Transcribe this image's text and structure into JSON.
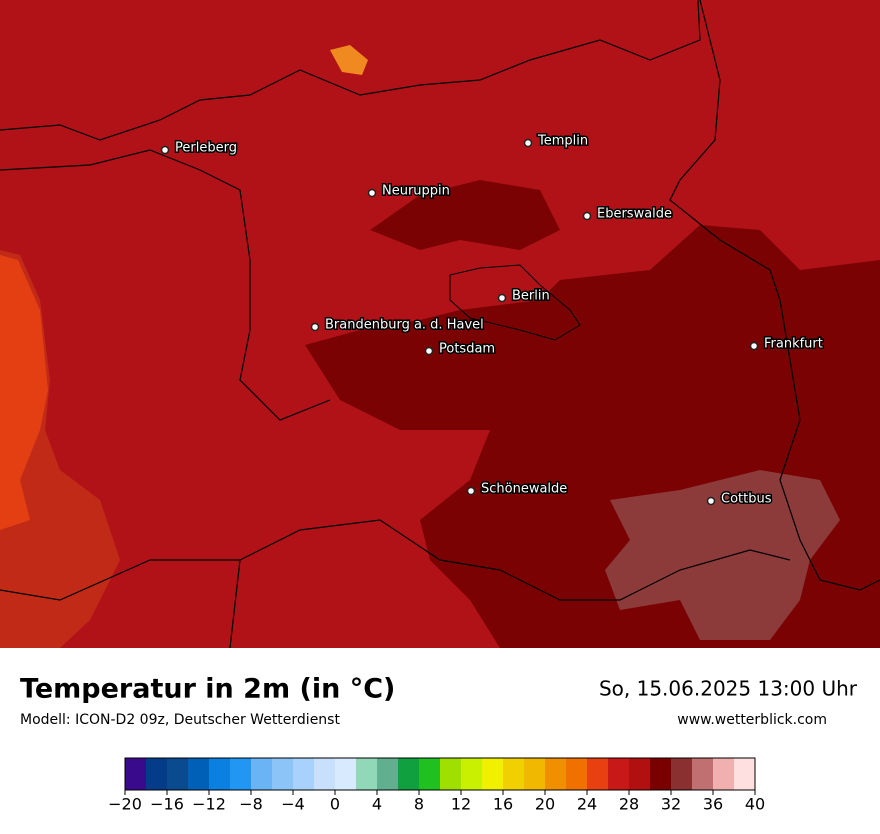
{
  "map": {
    "cities": [
      "Perleberg",
      "Templin",
      "Neuruppin",
      "Eberswalde",
      "Berlin",
      "Brandenburg a. d. Havel",
      "Potsdam",
      "Frankfurt",
      "Schönewalde",
      "Cottbus"
    ]
  },
  "footer": {
    "title": "Temperatur in 2m (in °C)",
    "subtitle": "Modell: ICON-D2 09z, Deutscher Wetterdienst",
    "date": "So, 15.06.2025 13:00 Uhr",
    "website": "www.wetterblick.com"
  },
  "colorbar": {
    "range": [
      -20,
      40
    ],
    "ticks": [
      {
        "value": -20,
        "label": "−20"
      },
      {
        "value": -16,
        "label": "−16"
      },
      {
        "value": -12,
        "label": "−12"
      },
      {
        "value": -8,
        "label": "−8"
      },
      {
        "value": -4,
        "label": "−4"
      },
      0,
      4,
      8,
      12,
      16,
      20,
      24,
      28,
      32,
      36,
      40
    ],
    "colors": [
      "#3a0a8c",
      "#053c8a",
      "#0a4a8f",
      "#0060b8",
      "#0a80e0",
      "#2196f3",
      "#6ab4f5",
      "#8cc4f8",
      "#a8d2fb",
      "#c8e0fb",
      "#d8eafd",
      "#90d8b8",
      "#60b090",
      "#11a040",
      "#20c020",
      "#a0e000",
      "#c8f000",
      "#f0f000",
      "#f0d000",
      "#f0b800",
      "#f09000",
      "#f07000",
      "#e84010",
      "#c81818",
      "#b01010",
      "#7a0000",
      "#8a3030",
      "#c07070",
      "#f0b0b0",
      "#ffe0e0"
    ]
  }
}
